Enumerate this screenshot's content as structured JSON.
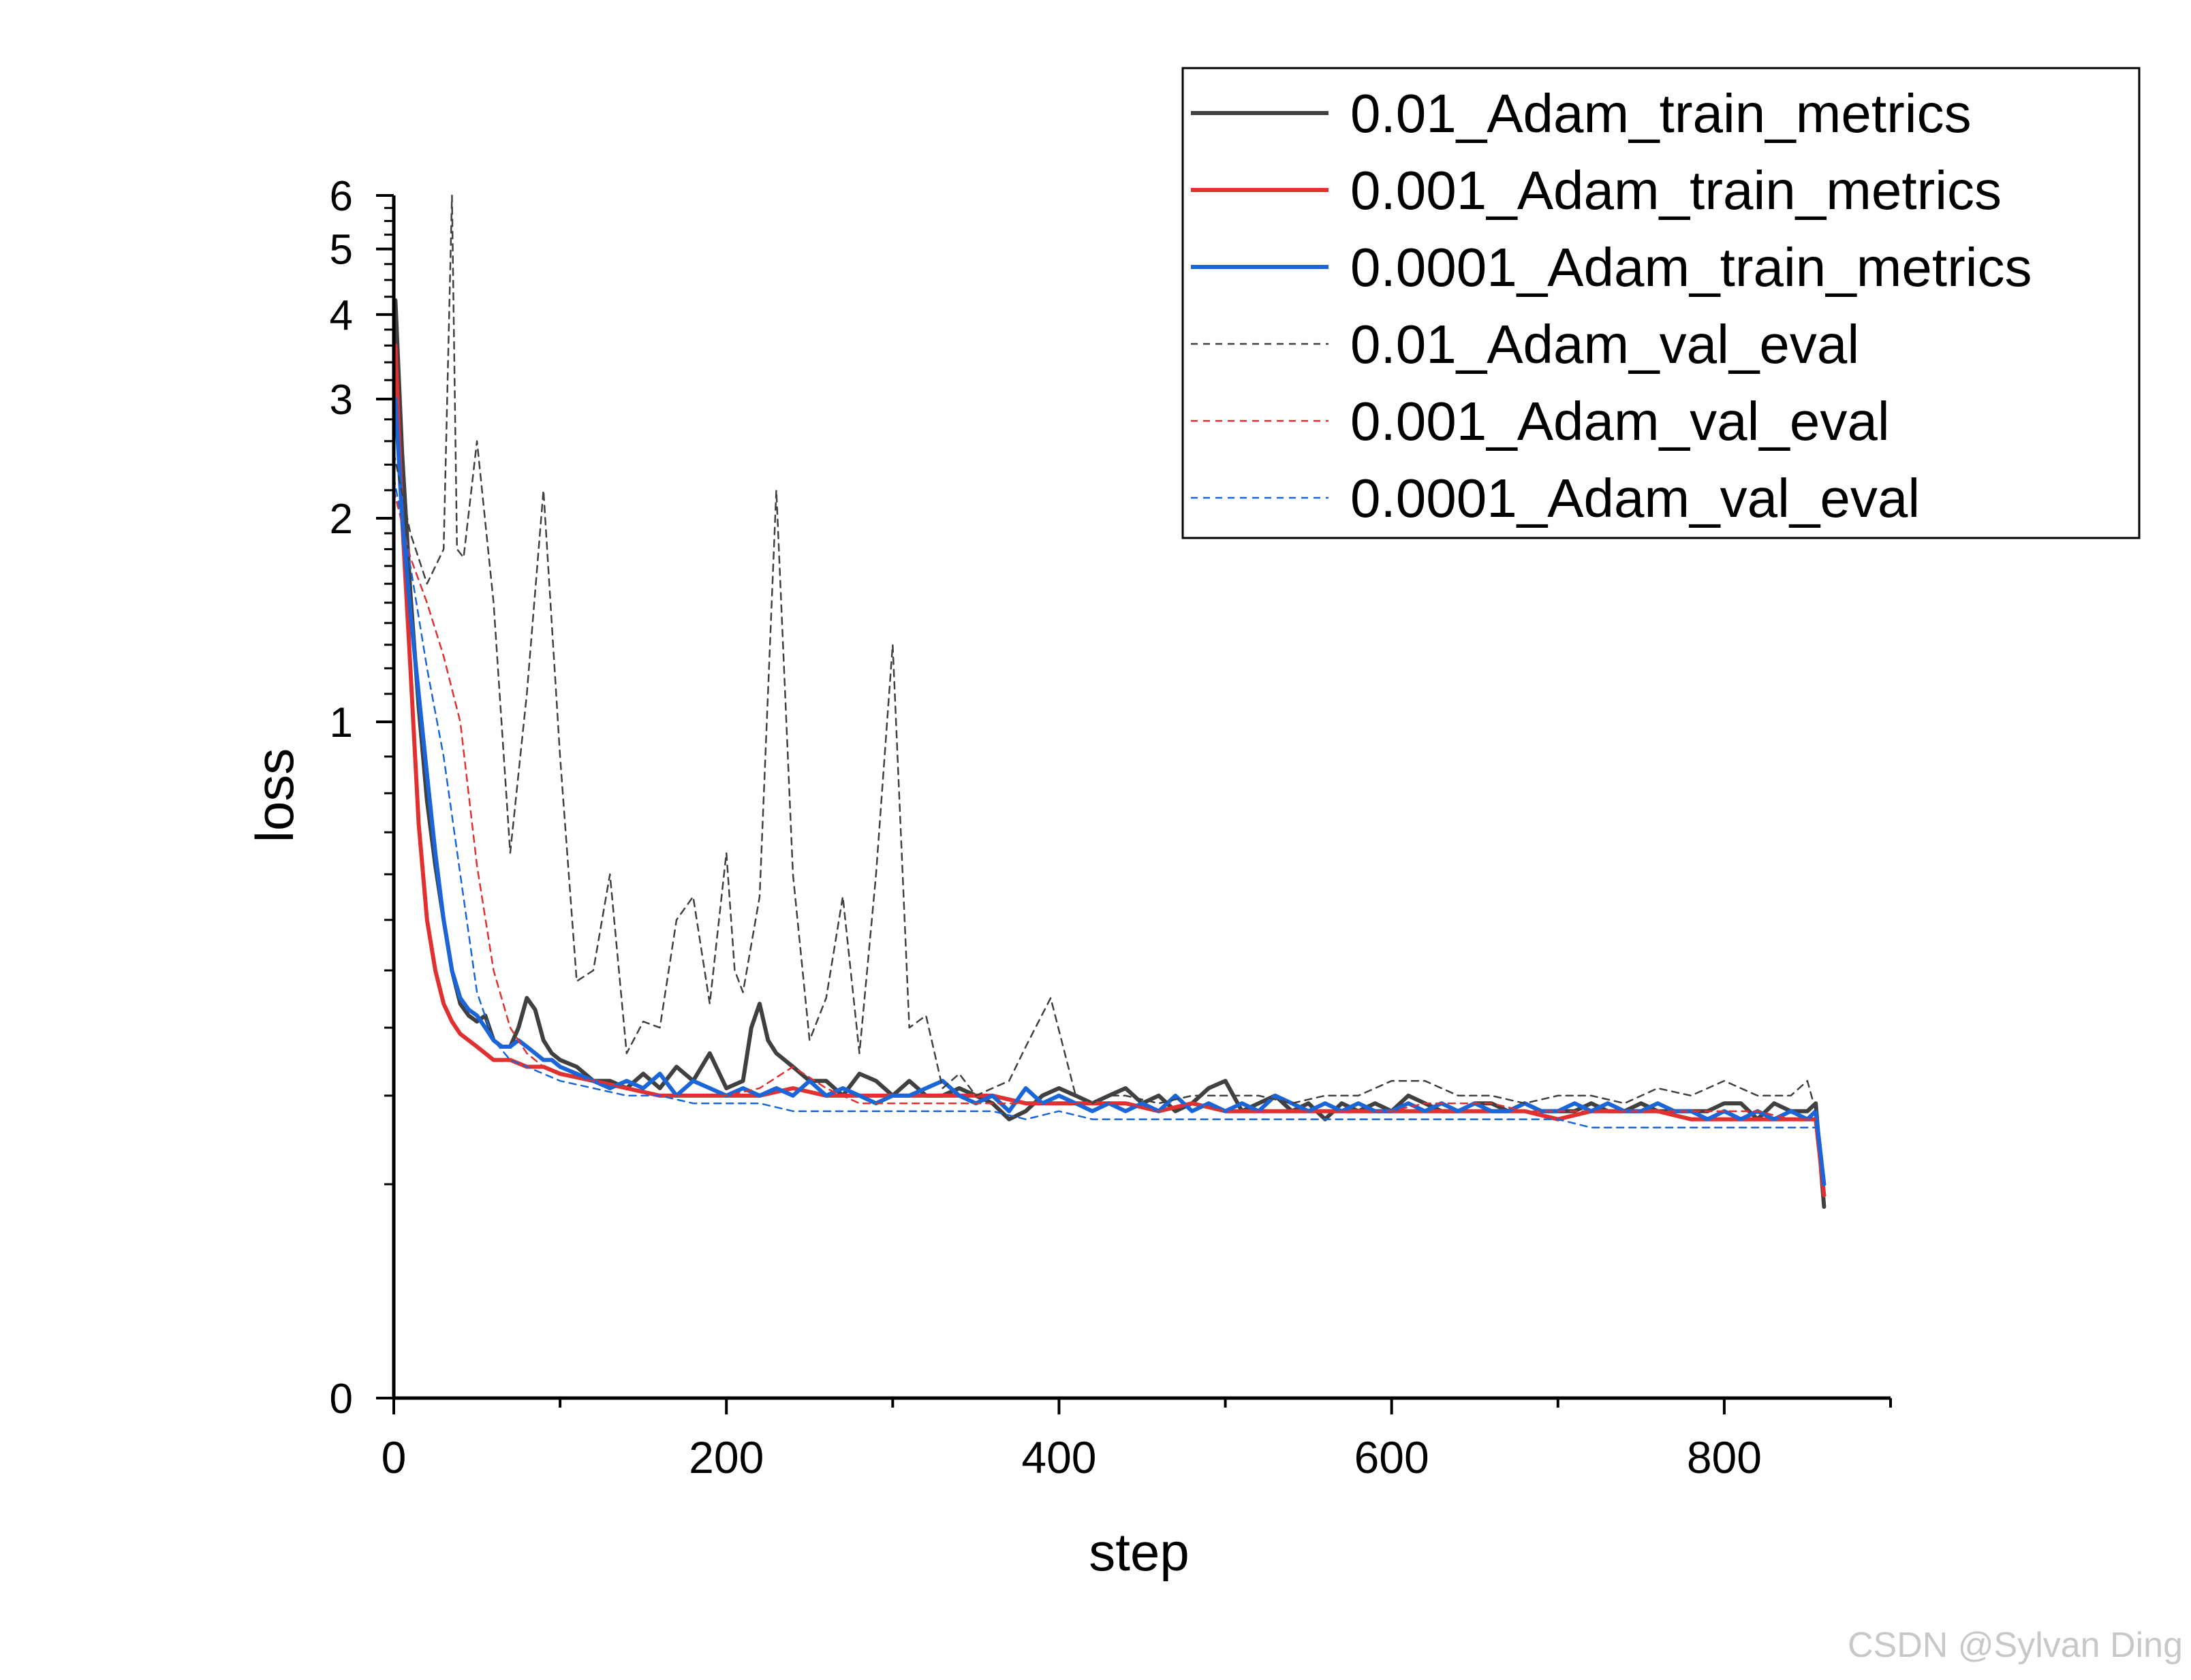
{
  "watermark": "CSDN @Sylvan Ding",
  "chart_data": {
    "type": "line",
    "xlabel": "step",
    "ylabel": "loss",
    "xlim": [
      0,
      900
    ],
    "ylim": [
      0,
      6
    ],
    "xticks": [
      "0",
      "200",
      "400",
      "600",
      "800"
    ],
    "yticks": [
      "0",
      "1",
      "2",
      "3",
      "4",
      "5",
      "6"
    ],
    "legend_position": "top-right",
    "colors": {
      "black": "#404040",
      "red": "#e03030",
      "blue": "#1a66d9"
    },
    "series": [
      {
        "name": "0.01_Adam_train_metrics",
        "color": "#404040",
        "style": "solid",
        "x": [
          1,
          5,
          10,
          15,
          20,
          25,
          30,
          35,
          40,
          45,
          50,
          55,
          60,
          65,
          70,
          75,
          80,
          85,
          90,
          95,
          100,
          110,
          120,
          130,
          140,
          150,
          160,
          170,
          180,
          190,
          200,
          210,
          215,
          220,
          225,
          230,
          240,
          250,
          260,
          270,
          280,
          290,
          300,
          310,
          320,
          330,
          340,
          350,
          360,
          370,
          380,
          390,
          400,
          410,
          420,
          430,
          440,
          450,
          460,
          470,
          480,
          490,
          500,
          510,
          520,
          530,
          540,
          550,
          560,
          570,
          580,
          590,
          600,
          610,
          620,
          630,
          640,
          650,
          660,
          670,
          680,
          690,
          700,
          710,
          720,
          730,
          740,
          750,
          760,
          770,
          780,
          790,
          800,
          810,
          820,
          830,
          840,
          850,
          855,
          860
        ],
        "y": [
          4.2,
          2.5,
          1.55,
          1.05,
          0.78,
          0.62,
          0.5,
          0.4,
          0.34,
          0.32,
          0.31,
          0.32,
          0.28,
          0.27,
          0.27,
          0.3,
          0.35,
          0.33,
          0.28,
          0.26,
          0.25,
          0.24,
          0.22,
          0.22,
          0.21,
          0.23,
          0.21,
          0.24,
          0.22,
          0.26,
          0.21,
          0.22,
          0.3,
          0.34,
          0.28,
          0.26,
          0.24,
          0.22,
          0.22,
          0.2,
          0.23,
          0.22,
          0.2,
          0.22,
          0.2,
          0.2,
          0.21,
          0.2,
          0.19,
          0.17,
          0.18,
          0.2,
          0.21,
          0.2,
          0.19,
          0.2,
          0.21,
          0.19,
          0.2,
          0.18,
          0.19,
          0.21,
          0.22,
          0.18,
          0.19,
          0.2,
          0.18,
          0.19,
          0.17,
          0.19,
          0.18,
          0.19,
          0.18,
          0.2,
          0.19,
          0.18,
          0.18,
          0.19,
          0.19,
          0.18,
          0.19,
          0.18,
          0.18,
          0.18,
          0.19,
          0.18,
          0.18,
          0.19,
          0.18,
          0.18,
          0.18,
          0.18,
          0.19,
          0.19,
          0.17,
          0.19,
          0.18,
          0.18,
          0.19,
          0.08
        ]
      },
      {
        "name": "0.001_Adam_train_metrics",
        "color": "#e03030",
        "style": "solid",
        "x": [
          1,
          5,
          10,
          15,
          20,
          25,
          30,
          35,
          40,
          50,
          60,
          70,
          80,
          90,
          100,
          120,
          140,
          160,
          180,
          200,
          220,
          240,
          260,
          280,
          300,
          320,
          340,
          360,
          380,
          400,
          420,
          440,
          460,
          480,
          500,
          520,
          540,
          560,
          580,
          600,
          620,
          640,
          660,
          680,
          700,
          720,
          740,
          760,
          780,
          800,
          820,
          840,
          855,
          860
        ],
        "y": [
          3.6,
          2.0,
          1.2,
          0.72,
          0.5,
          0.4,
          0.34,
          0.31,
          0.29,
          0.27,
          0.25,
          0.25,
          0.24,
          0.24,
          0.23,
          0.22,
          0.21,
          0.2,
          0.2,
          0.2,
          0.2,
          0.21,
          0.2,
          0.2,
          0.2,
          0.2,
          0.2,
          0.2,
          0.19,
          0.19,
          0.19,
          0.19,
          0.18,
          0.19,
          0.18,
          0.18,
          0.18,
          0.18,
          0.18,
          0.18,
          0.18,
          0.18,
          0.18,
          0.18,
          0.17,
          0.18,
          0.18,
          0.18,
          0.17,
          0.17,
          0.17,
          0.17,
          0.17,
          0.09
        ]
      },
      {
        "name": "0.0001_Adam_train_metrics",
        "color": "#1a66d9",
        "style": "solid",
        "x": [
          1,
          5,
          10,
          15,
          20,
          25,
          30,
          35,
          40,
          45,
          50,
          55,
          60,
          65,
          70,
          75,
          80,
          85,
          90,
          95,
          100,
          110,
          120,
          130,
          140,
          150,
          160,
          170,
          180,
          190,
          200,
          210,
          220,
          230,
          240,
          250,
          260,
          270,
          280,
          290,
          300,
          310,
          320,
          330,
          340,
          350,
          360,
          370,
          380,
          390,
          400,
          410,
          420,
          430,
          440,
          450,
          460,
          470,
          480,
          490,
          500,
          510,
          520,
          530,
          540,
          550,
          560,
          570,
          580,
          590,
          600,
          610,
          620,
          630,
          640,
          650,
          660,
          670,
          680,
          690,
          700,
          710,
          720,
          730,
          740,
          750,
          760,
          770,
          780,
          790,
          800,
          810,
          820,
          830,
          840,
          850,
          855,
          860
        ],
        "y": [
          3.0,
          2.0,
          1.45,
          1.1,
          0.85,
          0.65,
          0.5,
          0.4,
          0.35,
          0.33,
          0.32,
          0.3,
          0.28,
          0.27,
          0.27,
          0.28,
          0.27,
          0.26,
          0.25,
          0.25,
          0.24,
          0.23,
          0.22,
          0.21,
          0.22,
          0.21,
          0.23,
          0.2,
          0.22,
          0.21,
          0.2,
          0.21,
          0.2,
          0.21,
          0.2,
          0.22,
          0.2,
          0.21,
          0.2,
          0.19,
          0.2,
          0.2,
          0.21,
          0.22,
          0.2,
          0.19,
          0.2,
          0.18,
          0.21,
          0.19,
          0.2,
          0.19,
          0.18,
          0.19,
          0.18,
          0.19,
          0.18,
          0.2,
          0.18,
          0.19,
          0.18,
          0.19,
          0.18,
          0.2,
          0.19,
          0.18,
          0.19,
          0.18,
          0.19,
          0.18,
          0.18,
          0.19,
          0.18,
          0.19,
          0.18,
          0.19,
          0.18,
          0.18,
          0.19,
          0.18,
          0.18,
          0.19,
          0.18,
          0.19,
          0.18,
          0.18,
          0.19,
          0.18,
          0.18,
          0.17,
          0.18,
          0.17,
          0.18,
          0.17,
          0.18,
          0.17,
          0.18,
          0.1
        ]
      },
      {
        "name": "0.01_Adam_val_eval",
        "color": "#404040",
        "style": "dashed",
        "x": [
          0,
          10,
          20,
          30,
          35,
          38,
          42,
          50,
          60,
          70,
          80,
          90,
          100,
          110,
          120,
          130,
          140,
          150,
          160,
          170,
          180,
          190,
          200,
          205,
          210,
          220,
          230,
          240,
          250,
          260,
          270,
          280,
          290,
          300,
          310,
          320,
          330,
          340,
          350,
          360,
          370,
          380,
          395,
          410,
          420,
          430,
          440,
          460,
          480,
          500,
          520,
          540,
          560,
          580,
          600,
          620,
          640,
          660,
          680,
          700,
          720,
          740,
          760,
          780,
          800,
          820,
          840,
          850,
          855
        ],
        "y": [
          2.5,
          1.9,
          1.6,
          1.8,
          6.0,
          1.8,
          1.75,
          2.6,
          1.5,
          0.65,
          1.1,
          2.2,
          0.9,
          0.38,
          0.4,
          0.6,
          0.26,
          0.31,
          0.3,
          0.5,
          0.55,
          0.34,
          0.65,
          0.4,
          0.36,
          0.55,
          2.2,
          0.6,
          0.28,
          0.35,
          0.55,
          0.26,
          0.6,
          1.3,
          0.3,
          0.32,
          0.21,
          0.23,
          0.2,
          0.21,
          0.22,
          0.27,
          0.35,
          0.2,
          0.19,
          0.2,
          0.2,
          0.19,
          0.2,
          0.2,
          0.2,
          0.19,
          0.2,
          0.2,
          0.22,
          0.22,
          0.2,
          0.2,
          0.19,
          0.2,
          0.2,
          0.19,
          0.21,
          0.2,
          0.22,
          0.2,
          0.2,
          0.22,
          0.18
        ]
      },
      {
        "name": "0.001_Adam_val_eval",
        "color": "#e03030",
        "style": "dashed",
        "x": [
          0,
          10,
          20,
          30,
          40,
          50,
          60,
          70,
          80,
          90,
          100,
          120,
          140,
          160,
          180,
          200,
          220,
          240,
          260,
          280,
          300,
          320,
          340,
          360,
          380,
          400,
          420,
          440,
          460,
          480,
          500,
          520,
          540,
          560,
          580,
          600,
          620,
          640,
          660,
          680,
          700,
          720,
          740,
          760,
          780,
          800,
          820,
          840,
          855
        ],
        "y": [
          2.2,
          1.75,
          1.5,
          1.25,
          1.0,
          0.62,
          0.4,
          0.3,
          0.26,
          0.24,
          0.23,
          0.22,
          0.21,
          0.2,
          0.2,
          0.2,
          0.21,
          0.24,
          0.21,
          0.19,
          0.19,
          0.19,
          0.19,
          0.19,
          0.19,
          0.19,
          0.19,
          0.19,
          0.18,
          0.19,
          0.18,
          0.18,
          0.18,
          0.18,
          0.18,
          0.18,
          0.19,
          0.19,
          0.19,
          0.18,
          0.18,
          0.18,
          0.18,
          0.18,
          0.18,
          0.18,
          0.18,
          0.17,
          0.17
        ]
      },
      {
        "name": "0.0001_Adam_val_eval",
        "color": "#1a66d9",
        "style": "dashed",
        "x": [
          0,
          10,
          20,
          30,
          40,
          50,
          60,
          70,
          80,
          90,
          100,
          120,
          140,
          160,
          180,
          200,
          220,
          240,
          260,
          280,
          300,
          320,
          340,
          360,
          380,
          400,
          420,
          440,
          460,
          480,
          500,
          520,
          540,
          560,
          580,
          600,
          620,
          640,
          660,
          680,
          700,
          720,
          740,
          760,
          780,
          800,
          820,
          840,
          855
        ],
        "y": [
          2.3,
          1.7,
          1.2,
          0.9,
          0.6,
          0.36,
          0.28,
          0.25,
          0.24,
          0.23,
          0.22,
          0.21,
          0.2,
          0.2,
          0.19,
          0.19,
          0.19,
          0.18,
          0.18,
          0.18,
          0.18,
          0.18,
          0.18,
          0.18,
          0.17,
          0.18,
          0.17,
          0.17,
          0.17,
          0.17,
          0.17,
          0.17,
          0.17,
          0.17,
          0.17,
          0.17,
          0.17,
          0.17,
          0.17,
          0.17,
          0.17,
          0.16,
          0.16,
          0.16,
          0.16,
          0.16,
          0.16,
          0.16,
          0.16
        ]
      }
    ]
  }
}
